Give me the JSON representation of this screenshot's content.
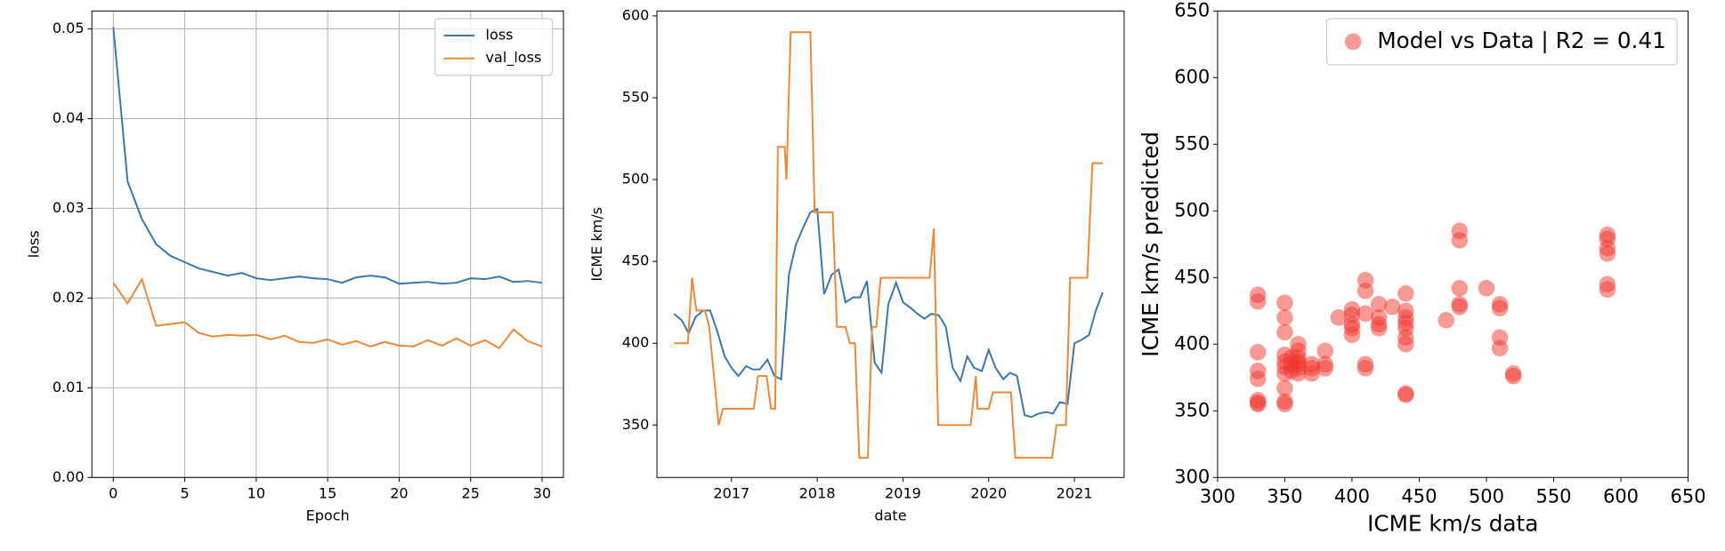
{
  "chart_data": [
    {
      "type": "line",
      "xlabel": "Epoch",
      "ylabel": "loss",
      "x": [
        0,
        1,
        2,
        3,
        4,
        5,
        6,
        7,
        8,
        9,
        10,
        11,
        12,
        13,
        14,
        15,
        16,
        17,
        18,
        19,
        20,
        21,
        22,
        23,
        24,
        25,
        26,
        27,
        28,
        29,
        30
      ],
      "series": [
        {
          "name": "loss",
          "color": "#3a75b0",
          "values": [
            0.0502,
            0.033,
            0.0288,
            0.026,
            0.0247,
            0.024,
            0.0233,
            0.0229,
            0.0225,
            0.0228,
            0.0222,
            0.022,
            0.0222,
            0.0224,
            0.0222,
            0.0221,
            0.0217,
            0.0223,
            0.0225,
            0.0223,
            0.0216,
            0.0217,
            0.0218,
            0.0216,
            0.0217,
            0.0222,
            0.0221,
            0.0224,
            0.0218,
            0.0219,
            0.0217
          ]
        },
        {
          "name": "val_loss",
          "color": "#ef8636",
          "values": [
            0.0217,
            0.0194,
            0.0221,
            0.0169,
            0.0171,
            0.0173,
            0.0161,
            0.0157,
            0.0159,
            0.0158,
            0.0159,
            0.0154,
            0.0158,
            0.0151,
            0.015,
            0.0154,
            0.0148,
            0.0152,
            0.0146,
            0.0151,
            0.0147,
            0.0146,
            0.0153,
            0.0147,
            0.0155,
            0.0147,
            0.0153,
            0.0144,
            0.0165,
            0.0152,
            0.0146
          ]
        }
      ],
      "xlim": [
        -1.5,
        31.5
      ],
      "xticks": [
        0,
        5,
        10,
        15,
        20,
        25,
        30
      ],
      "ylim": [
        0,
        0.052
      ],
      "yticks": [
        {
          "value": 0,
          "label": "0.00"
        },
        0.01,
        0.02,
        0.03,
        0.04,
        0.05
      ],
      "grid": true,
      "legend": "upper right"
    },
    {
      "type": "line",
      "xlabel": "date",
      "ylabel": "ICME km/s",
      "series": [
        {
          "color": "#3a75b0",
          "x": [
            2016.33,
            2016.42,
            2016.5,
            2016.58,
            2016.67,
            2016.75,
            2016.83,
            2016.92,
            2017,
            2017.08,
            2017.17,
            2017.25,
            2017.33,
            2017.42,
            2017.5,
            2017.58,
            2017.67,
            2017.75,
            2017.83,
            2017.92,
            2018,
            2018.08,
            2018.17,
            2018.25,
            2018.33,
            2018.42,
            2018.5,
            2018.58,
            2018.67,
            2018.75,
            2018.83,
            2018.92,
            2019,
            2019.08,
            2019.17,
            2019.25,
            2019.33,
            2019.42,
            2019.5,
            2019.58,
            2019.67,
            2019.75,
            2019.83,
            2019.92,
            2020,
            2020.08,
            2020.17,
            2020.25,
            2020.33,
            2020.42,
            2020.5,
            2020.58,
            2020.67,
            2020.75,
            2020.83,
            2020.92,
            2021,
            2021.08,
            2021.17,
            2021.25,
            2021.33
          ],
          "values": [
            418,
            414,
            406,
            416,
            420,
            420,
            408,
            392,
            385,
            380,
            386,
            384,
            384,
            390,
            380,
            378,
            442,
            460,
            470,
            480,
            482,
            430,
            442,
            445,
            425,
            428,
            428,
            438,
            388,
            382,
            424,
            437,
            425,
            422,
            418,
            415,
            418,
            417,
            410,
            385,
            377,
            392,
            385,
            383,
            396,
            385,
            378,
            382,
            380,
            356,
            355,
            357,
            358,
            357,
            364,
            363,
            400,
            402,
            405,
            420,
            431
          ]
        },
        {
          "color": "#ef8636",
          "x": [
            2016.33,
            2016.49,
            2016.54,
            2016.59,
            2016.69,
            2016.74,
            2016.85,
            2016.9,
            2017.26,
            2017.31,
            2017.41,
            2017.46,
            2017.51,
            2017.54,
            2017.62,
            2017.64,
            2017.69,
            2017.92,
            2017.97,
            2018.18,
            2018.23,
            2018.33,
            2018.38,
            2018.44,
            2018.49,
            2018.59,
            2018.64,
            2018.69,
            2018.74,
            2019.31,
            2019.36,
            2019.41,
            2019.79,
            2019.85,
            2019.87,
            2020,
            2020.05,
            2020.26,
            2020.31,
            2020.74,
            2020.79,
            2020.9,
            2020.95,
            2021.15,
            2021.21,
            2021.33
          ],
          "values": [
            400,
            400,
            440,
            420,
            420,
            410,
            350,
            360,
            360,
            380,
            380,
            360,
            360,
            520,
            520,
            500,
            590,
            590,
            480,
            480,
            410,
            410,
            400,
            400,
            330,
            330,
            410,
            410,
            440,
            440,
            470,
            350,
            350,
            380,
            360,
            360,
            370,
            370,
            330,
            330,
            350,
            350,
            440,
            440,
            510,
            510
          ]
        }
      ],
      "xlim": [
        2016.13,
        2021.58
      ],
      "xticks": [
        2017,
        2018,
        2019,
        2020,
        2021
      ],
      "ylim": [
        318,
        603
      ],
      "yticks": [
        350,
        400,
        450,
        500,
        550,
        600
      ]
    },
    {
      "type": "scatter",
      "xlabel": "ICME km/s data",
      "ylabel": "ICME km/s predicted",
      "series": [
        {
          "name": "Model vs Data | R2 = 0.41",
          "color": "#f0362e",
          "alpha": 0.5,
          "x": [
            330,
            330,
            330,
            330,
            330,
            330,
            330,
            330,
            350,
            350,
            350,
            350,
            350,
            350,
            350,
            350,
            350,
            350,
            355,
            355,
            355,
            360,
            360,
            360,
            360,
            360,
            360,
            360,
            370,
            370,
            370,
            380,
            380,
            380,
            390,
            400,
            400,
            400,
            400,
            400,
            410,
            410,
            410,
            410,
            410,
            420,
            420,
            420,
            420,
            430,
            440,
            440,
            440,
            440,
            440,
            440,
            440,
            440,
            440,
            470,
            480,
            480,
            480,
            480,
            480,
            500,
            510,
            510,
            510,
            510,
            520,
            520,
            590,
            590,
            590,
            590,
            590,
            590
          ],
          "values": [
            437,
            432,
            394,
            380,
            374,
            358,
            356,
            355,
            431,
            420,
            409,
            392,
            387,
            383,
            378,
            367,
            357,
            355,
            390,
            385,
            380,
            400,
            395,
            390,
            387,
            385,
            382,
            378,
            385,
            382,
            378,
            395,
            385,
            382,
            420,
            426,
            422,
            415,
            412,
            407,
            448,
            440,
            423,
            385,
            382,
            430,
            420,
            415,
            412,
            428,
            438,
            425,
            420,
            416,
            412,
            405,
            400,
            363,
            362,
            418,
            485,
            478,
            430,
            428,
            442,
            442,
            430,
            427,
            405,
            397,
            378,
            376,
            482,
            479,
            472,
            468,
            445,
            441
          ]
        }
      ],
      "xlim": [
        300,
        650
      ],
      "xticks": [
        300,
        350,
        400,
        450,
        500,
        550,
        600,
        650
      ],
      "ylim": [
        300,
        650
      ],
      "yticks": [
        300,
        350,
        400,
        450,
        500,
        550,
        600,
        650
      ],
      "legend": "upper right"
    }
  ]
}
